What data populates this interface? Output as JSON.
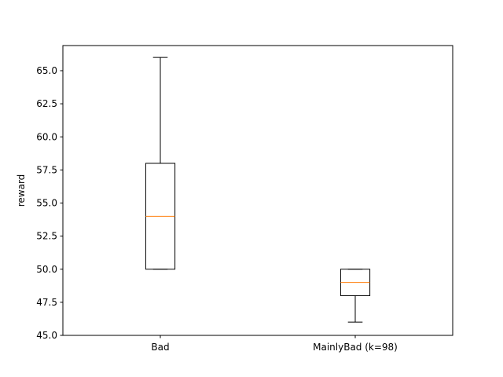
{
  "chart_data": {
    "type": "box",
    "title": "",
    "xlabel": "",
    "ylabel": "reward",
    "ylim": [
      45.0,
      66.9
    ],
    "yticks": [
      45.0,
      47.5,
      50.0,
      52.5,
      55.0,
      57.5,
      60.0,
      62.5,
      65.0
    ],
    "ytick_labels": [
      "45.0",
      "47.5",
      "50.0",
      "52.5",
      "55.0",
      "57.5",
      "60.0",
      "62.5",
      "65.0"
    ],
    "grid": false,
    "categories": [
      "Bad",
      "MainlyBad (k=98)"
    ],
    "boxes": [
      {
        "whisker_low": 50,
        "q1": 50,
        "median": 54,
        "q3": 58,
        "whisker_high": 66
      },
      {
        "whisker_low": 46,
        "q1": 48,
        "median": 49,
        "q3": 50,
        "whisker_high": 50
      }
    ],
    "colors": {
      "box": "#000000",
      "median": "#ff7f0e"
    }
  }
}
